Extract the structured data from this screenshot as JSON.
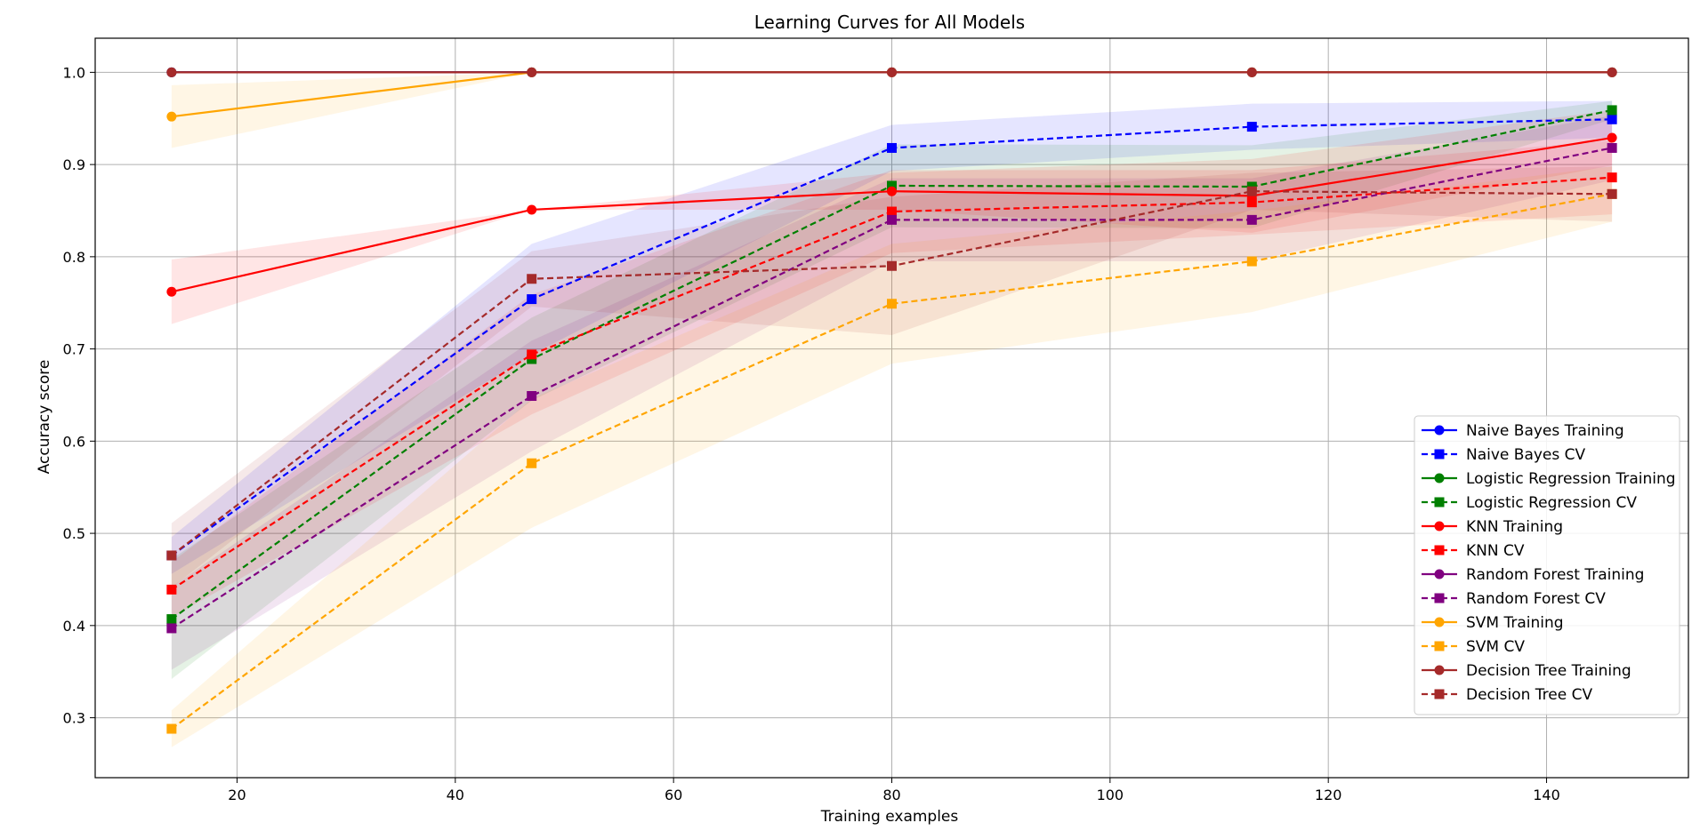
{
  "chart_data": {
    "type": "line",
    "title": "Learning Curves for All Models",
    "xlabel": "Training examples",
    "ylabel": "Accuracy score",
    "xlim": [
      7,
      153
    ],
    "ylim": [
      0.235,
      1.037
    ],
    "x": [
      14,
      47,
      80,
      113,
      146
    ],
    "xticks": [
      20,
      40,
      60,
      80,
      100,
      120,
      140
    ],
    "yticks": [
      0.3,
      0.4,
      0.5,
      0.6,
      0.7,
      0.8,
      0.9,
      1.0
    ],
    "grid": true,
    "legend_position": "lower-right",
    "series": [
      {
        "name": "Naive Bayes Training",
        "color": "#0000ff",
        "linestyle": "solid",
        "marker": "circle",
        "values": [
          1.0,
          1.0,
          1.0,
          1.0,
          1.0
        ],
        "std": [
          0,
          0,
          0,
          0,
          0
        ]
      },
      {
        "name": "Naive Bayes CV",
        "color": "#0000ff",
        "linestyle": "dashed",
        "marker": "square",
        "values": [
          0.476,
          0.754,
          0.918,
          0.941,
          0.949
        ],
        "std": [
          0.02,
          0.06,
          0.025,
          0.025,
          0.02
        ]
      },
      {
        "name": "Logistic Regression Training",
        "color": "#008000",
        "linestyle": "solid",
        "marker": "circle",
        "values": [
          1.0,
          1.0,
          1.0,
          1.0,
          1.0
        ],
        "std": [
          0,
          0,
          0,
          0,
          0
        ]
      },
      {
        "name": "Logistic Regression CV",
        "color": "#008000",
        "linestyle": "dashed",
        "marker": "square",
        "values": [
          0.407,
          0.689,
          0.877,
          0.876,
          0.959
        ],
        "std": [
          0.065,
          0.045,
          0.045,
          0.045,
          0.01
        ]
      },
      {
        "name": "KNN Training",
        "color": "#ff0000",
        "linestyle": "solid",
        "marker": "circle",
        "values": [
          0.762,
          0.851,
          0.871,
          0.866,
          0.929
        ],
        "std": [
          0.035,
          0.0,
          0.02,
          0.04,
          0.03
        ]
      },
      {
        "name": "KNN CV",
        "color": "#ff0000",
        "linestyle": "dashed",
        "marker": "square",
        "values": [
          0.439,
          0.694,
          0.849,
          0.859,
          0.886
        ],
        "std": [
          0.03,
          0.065,
          0.045,
          0.035,
          0.04
        ]
      },
      {
        "name": "Random Forest Training",
        "color": "#800080",
        "linestyle": "solid",
        "marker": "circle",
        "values": [
          1.0,
          1.0,
          1.0,
          1.0,
          1.0
        ],
        "std": [
          0,
          0,
          0,
          0,
          0
        ]
      },
      {
        "name": "Random Forest CV",
        "color": "#800080",
        "linestyle": "dashed",
        "marker": "square",
        "values": [
          0.397,
          0.649,
          0.84,
          0.84,
          0.918
        ],
        "std": [
          0.045,
          0.06,
          0.045,
          0.045,
          0.035
        ]
      },
      {
        "name": "SVM Training",
        "color": "#ffa500",
        "linestyle": "solid",
        "marker": "circle",
        "values": [
          0.952,
          1.0,
          1.0,
          1.0,
          1.0
        ],
        "std": [
          0.034,
          0,
          0,
          0,
          0
        ]
      },
      {
        "name": "SVM CV",
        "color": "#ffa500",
        "linestyle": "dashed",
        "marker": "square",
        "values": [
          0.288,
          0.576,
          0.749,
          0.795,
          0.868
        ],
        "std": [
          0.02,
          0.07,
          0.065,
          0.055,
          0.03
        ]
      },
      {
        "name": "Decision Tree Training",
        "color": "#a52a2a",
        "linestyle": "solid",
        "marker": "circle",
        "values": [
          1.0,
          1.0,
          1.0,
          1.0,
          1.0
        ],
        "std": [
          0,
          0,
          0,
          0,
          0
        ]
      },
      {
        "name": "Decision Tree CV",
        "color": "#a52a2a",
        "linestyle": "dashed",
        "marker": "square",
        "values": [
          0.476,
          0.776,
          0.79,
          0.871,
          0.868
        ],
        "std": [
          0.035,
          0.03,
          0.075,
          0.02,
          0.03
        ]
      }
    ]
  }
}
